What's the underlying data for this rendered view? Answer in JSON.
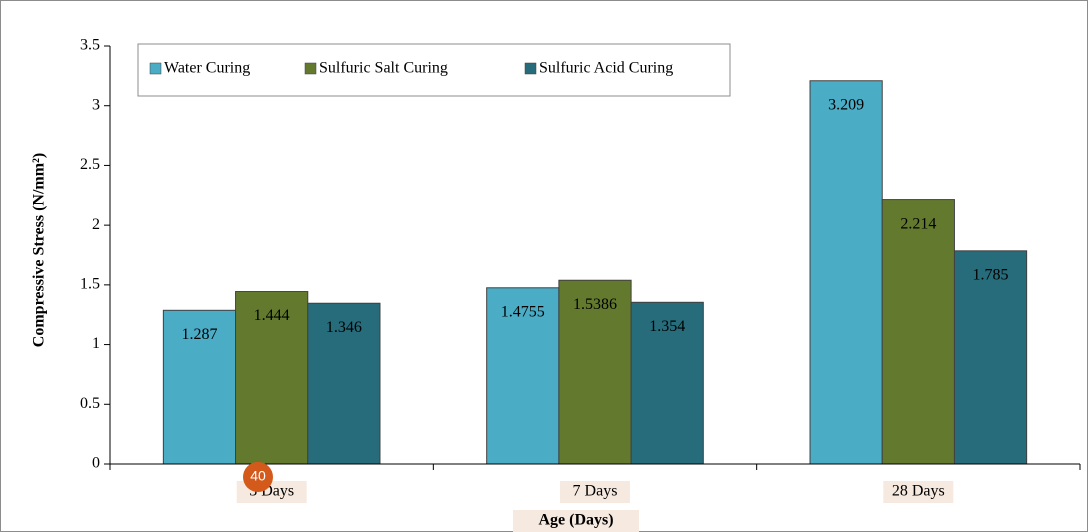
{
  "chart_data": {
    "type": "bar",
    "y_label": "Compressive Stress (N/mm²)",
    "x_label": "Age (Days)",
    "categories": [
      "3 Days",
      "7 Days",
      "28 Days"
    ],
    "series": [
      {
        "name": "Water Curing",
        "color": "#4bacc6",
        "values": [
          1.287,
          1.4755,
          3.209
        ]
      },
      {
        "name": "Sulfuric Salt Curing",
        "color": "#637a2e",
        "values": [
          1.444,
          1.5386,
          2.214
        ]
      },
      {
        "name": "Sulfuric Acid Curing",
        "color": "#266c7b",
        "values": [
          1.346,
          1.354,
          1.785
        ]
      }
    ],
    "ylim": [
      0,
      3.5
    ],
    "yticks": [
      0,
      0.5,
      1,
      1.5,
      2,
      2.5,
      3,
      3.5
    ],
    "legend": "top-left",
    "badge": "40"
  }
}
